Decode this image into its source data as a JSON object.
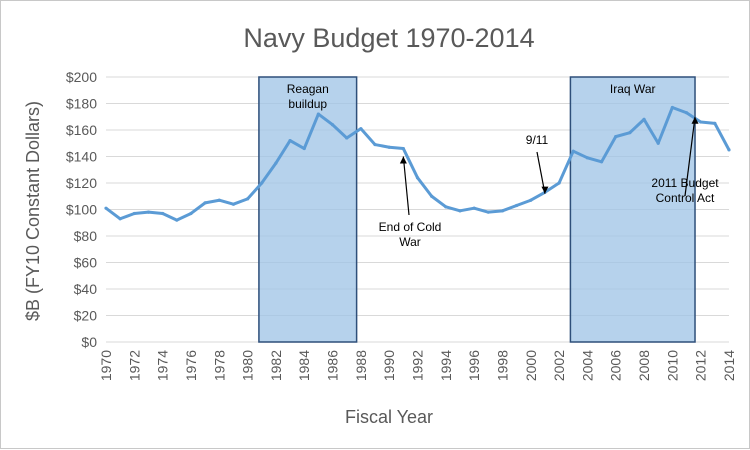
{
  "chart_data": {
    "type": "line",
    "title": "Navy Budget 1970-2014",
    "xlabel": "Fiscal Year",
    "ylabel": "$B (FY10 Constant Dollars)",
    "xlim": [
      1970,
      2014
    ],
    "ylim": [
      0,
      200
    ],
    "yticks": [
      "$0",
      "$20",
      "$40",
      "$60",
      "$80",
      "$100",
      "$120",
      "$140",
      "$160",
      "$180",
      "$200"
    ],
    "ytick_values": [
      0,
      20,
      40,
      60,
      80,
      100,
      120,
      140,
      160,
      180,
      200
    ],
    "xticks": [
      "1970",
      "1972",
      "1974",
      "1976",
      "1978",
      "1980",
      "1982",
      "1984",
      "1986",
      "1988",
      "1990",
      "1992",
      "1994",
      "1996",
      "1998",
      "2000",
      "2002",
      "2004",
      "2006",
      "2008",
      "2010",
      "2012",
      "2014"
    ],
    "grid": true,
    "colors": {
      "series": "#5b9bd5",
      "shade": "#9dc3e6",
      "shade_border": "#2e4f7a"
    },
    "x": [
      1970,
      1971,
      1972,
      1973,
      1974,
      1975,
      1976,
      1977,
      1978,
      1979,
      1980,
      1981,
      1982,
      1983,
      1984,
      1985,
      1986,
      1987,
      1988,
      1989,
      1990,
      1991,
      1992,
      1993,
      1994,
      1995,
      1996,
      1997,
      1998,
      1999,
      2000,
      2001,
      2002,
      2003,
      2004,
      2005,
      2006,
      2007,
      2008,
      2009,
      2010,
      2011,
      2012,
      2013,
      2014
    ],
    "series": [
      {
        "values": [
          101,
          93,
          97,
          98,
          97,
          92,
          97,
          105,
          107,
          104,
          108,
          120,
          135,
          152,
          146,
          172,
          164,
          154,
          161,
          149,
          147,
          146,
          124,
          110,
          102,
          99,
          101,
          98,
          99,
          103,
          107,
          113,
          120,
          144,
          139,
          136,
          155,
          158,
          168,
          150,
          177,
          173,
          166,
          165,
          145
        ]
      }
    ],
    "shaded_regions": [
      {
        "x_range": [
          1980.8,
          1987.7
        ],
        "label_lines": [
          "Reagan",
          "buildup"
        ]
      },
      {
        "x_range": [
          2002.8,
          2011.6
        ],
        "label_lines": [
          "Iraq War"
        ]
      }
    ],
    "annotations": [
      {
        "text_lines": [
          "End of Cold",
          "War"
        ],
        "arrow_to": [
          1991,
          140
        ]
      },
      {
        "text_lines": [
          "9/11"
        ],
        "arrow_to": [
          2001,
          112
        ]
      },
      {
        "text_lines": [
          "2011 Budget",
          "Control Act"
        ],
        "arrow_to": [
          2011.6,
          170
        ]
      }
    ]
  }
}
